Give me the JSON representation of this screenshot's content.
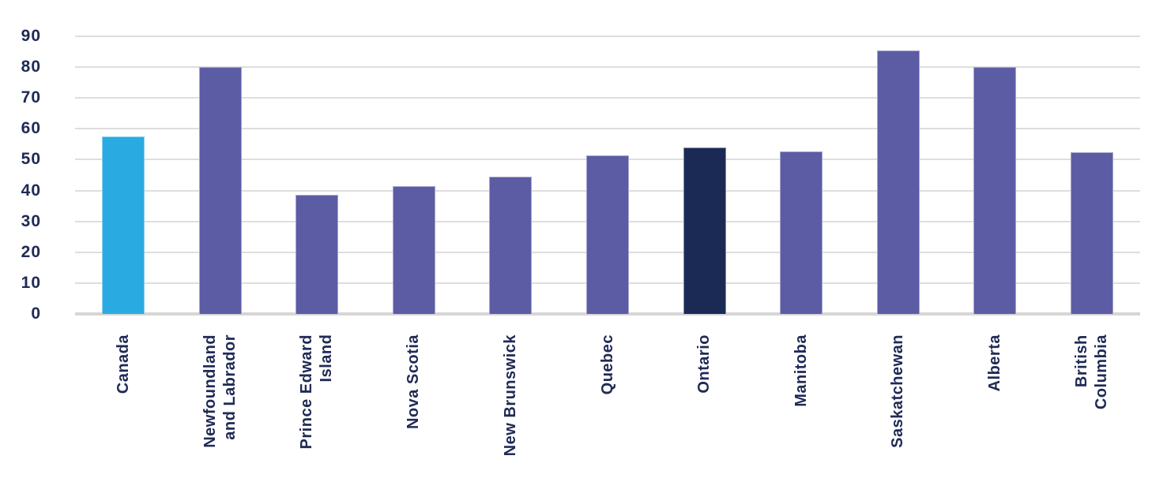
{
  "chart_data": {
    "type": "bar",
    "title": "",
    "xlabel": "",
    "ylabel": "",
    "categories": [
      "Canada",
      "Newfoundland and Labrador",
      "Prince Edward Island",
      "Nova Scotia",
      "New Brunswick",
      "Quebec",
      "Ontario",
      "Manitoba",
      "Saskatchewan",
      "Alberta",
      "British Columbia"
    ],
    "display_labels": [
      "Canada",
      "Newfoundland\nand Labrador",
      "Prince Edward\nIsland",
      "Nova Scotia",
      "New Brunswick",
      "Quebec",
      "Ontario",
      "Manitoba",
      "Saskatchewan",
      "Alberta",
      "British\nColumbia"
    ],
    "values": [
      57.5,
      80.0,
      38.7,
      41.4,
      44.5,
      51.5,
      54.0,
      52.8,
      85.4,
      80.0,
      52.3
    ],
    "bar_colors": [
      "#29ABE2",
      "#5C5CA5",
      "#5C5CA5",
      "#5C5CA5",
      "#5C5CA5",
      "#5C5CA5",
      "#1B2A55",
      "#5C5CA5",
      "#5C5CA5",
      "#5C5CA5",
      "#5C5CA5"
    ],
    "highlight_colors": {
      "canada": "#29ABE2",
      "ontario": "#1B2A55",
      "provinces_default": "#5C5CA5"
    },
    "y_ticks": [
      0,
      10,
      20,
      30,
      40,
      50,
      60,
      70,
      80,
      90
    ],
    "ylim": [
      0,
      90
    ],
    "grid": "horizontal",
    "legend": "none",
    "colors": {
      "axis_text": "#202A55",
      "gridline": "#DEDEDE",
      "baseline": "#D6D6D6",
      "background": "#FFFFFF"
    }
  }
}
